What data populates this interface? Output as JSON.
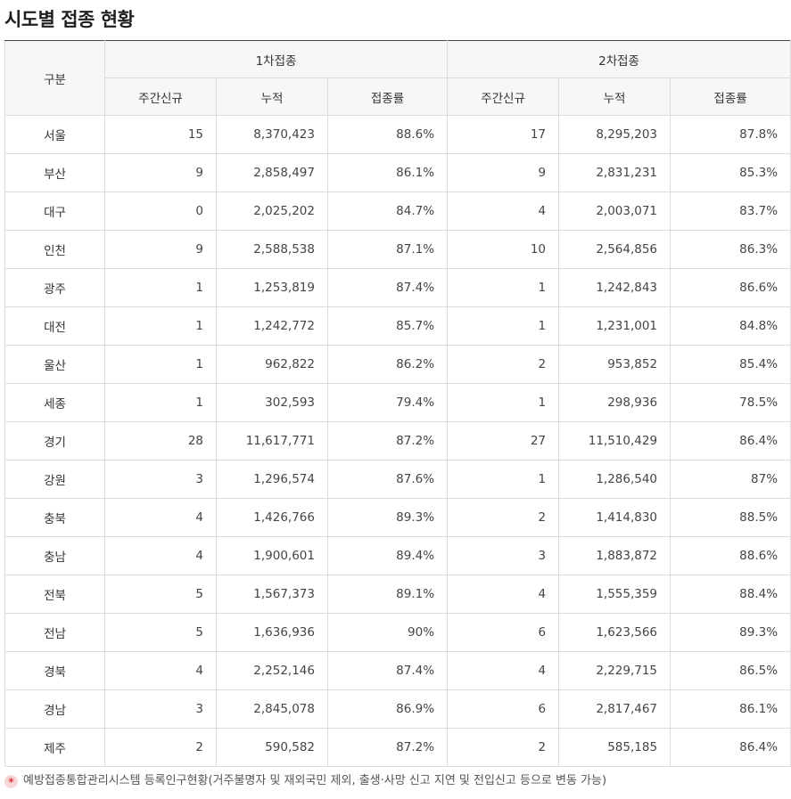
{
  "page": {
    "title": "시도별 접종 현황"
  },
  "table": {
    "header_region": "구분",
    "dose1_label": "1차접종",
    "dose2_label": "2차접종",
    "sub_weekly": "주간신규",
    "sub_cumulative": "누적",
    "sub_rate": "접종률",
    "rows": [
      {
        "region": "서울",
        "d1_weekly": "15",
        "d1_cum": "8,370,423",
        "d1_rate": "88.6%",
        "d2_weekly": "17",
        "d2_cum": "8,295,203",
        "d2_rate": "87.8%"
      },
      {
        "region": "부산",
        "d1_weekly": "9",
        "d1_cum": "2,858,497",
        "d1_rate": "86.1%",
        "d2_weekly": "9",
        "d2_cum": "2,831,231",
        "d2_rate": "85.3%"
      },
      {
        "region": "대구",
        "d1_weekly": "0",
        "d1_cum": "2,025,202",
        "d1_rate": "84.7%",
        "d2_weekly": "4",
        "d2_cum": "2,003,071",
        "d2_rate": "83.7%"
      },
      {
        "region": "인천",
        "d1_weekly": "9",
        "d1_cum": "2,588,538",
        "d1_rate": "87.1%",
        "d2_weekly": "10",
        "d2_cum": "2,564,856",
        "d2_rate": "86.3%"
      },
      {
        "region": "광주",
        "d1_weekly": "1",
        "d1_cum": "1,253,819",
        "d1_rate": "87.4%",
        "d2_weekly": "1",
        "d2_cum": "1,242,843",
        "d2_rate": "86.6%"
      },
      {
        "region": "대전",
        "d1_weekly": "1",
        "d1_cum": "1,242,772",
        "d1_rate": "85.7%",
        "d2_weekly": "1",
        "d2_cum": "1,231,001",
        "d2_rate": "84.8%"
      },
      {
        "region": "울산",
        "d1_weekly": "1",
        "d1_cum": "962,822",
        "d1_rate": "86.2%",
        "d2_weekly": "2",
        "d2_cum": "953,852",
        "d2_rate": "85.4%"
      },
      {
        "region": "세종",
        "d1_weekly": "1",
        "d1_cum": "302,593",
        "d1_rate": "79.4%",
        "d2_weekly": "1",
        "d2_cum": "298,936",
        "d2_rate": "78.5%"
      },
      {
        "region": "경기",
        "d1_weekly": "28",
        "d1_cum": "11,617,771",
        "d1_rate": "87.2%",
        "d2_weekly": "27",
        "d2_cum": "11,510,429",
        "d2_rate": "86.4%"
      },
      {
        "region": "강원",
        "d1_weekly": "3",
        "d1_cum": "1,296,574",
        "d1_rate": "87.6%",
        "d2_weekly": "1",
        "d2_cum": "1,286,540",
        "d2_rate": "87%"
      },
      {
        "region": "충북",
        "d1_weekly": "4",
        "d1_cum": "1,426,766",
        "d1_rate": "89.3%",
        "d2_weekly": "2",
        "d2_cum": "1,414,830",
        "d2_rate": "88.5%"
      },
      {
        "region": "충남",
        "d1_weekly": "4",
        "d1_cum": "1,900,601",
        "d1_rate": "89.4%",
        "d2_weekly": "3",
        "d2_cum": "1,883,872",
        "d2_rate": "88.6%"
      },
      {
        "region": "전북",
        "d1_weekly": "5",
        "d1_cum": "1,567,373",
        "d1_rate": "89.1%",
        "d2_weekly": "4",
        "d2_cum": "1,555,359",
        "d2_rate": "88.4%"
      },
      {
        "region": "전남",
        "d1_weekly": "5",
        "d1_cum": "1,636,936",
        "d1_rate": "90%",
        "d2_weekly": "6",
        "d2_cum": "1,623,566",
        "d2_rate": "89.3%"
      },
      {
        "region": "경북",
        "d1_weekly": "4",
        "d1_cum": "2,252,146",
        "d1_rate": "87.4%",
        "d2_weekly": "4",
        "d2_cum": "2,229,715",
        "d2_rate": "86.5%"
      },
      {
        "region": "경남",
        "d1_weekly": "3",
        "d1_cum": "2,845,078",
        "d1_rate": "86.9%",
        "d2_weekly": "6",
        "d2_cum": "2,817,467",
        "d2_rate": "86.1%"
      },
      {
        "region": "제주",
        "d1_weekly": "2",
        "d1_cum": "590,582",
        "d1_rate": "87.2%",
        "d2_weekly": "2",
        "d2_cum": "585,185",
        "d2_rate": "86.4%"
      }
    ]
  },
  "footnote": {
    "icon": "asterisk-icon",
    "icon_glyph": "*",
    "icon_color": "#e0393e",
    "text": "예방접종통합관리시스템 등록인구현황(거주불명자 및 재외국민 제외, 출생·사망 신고 지연 및 전입신고 등으로 변동 가능)"
  }
}
